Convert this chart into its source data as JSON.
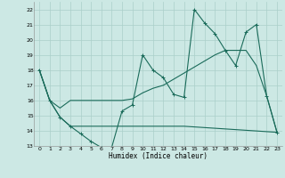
{
  "xlabel": "Humidex (Indice chaleur)",
  "xlim": [
    -0.5,
    23.5
  ],
  "ylim": [
    13,
    22.5
  ],
  "xticks": [
    0,
    1,
    2,
    3,
    4,
    5,
    6,
    7,
    8,
    9,
    10,
    11,
    12,
    13,
    14,
    15,
    16,
    17,
    18,
    19,
    20,
    21,
    22,
    23
  ],
  "yticks": [
    13,
    14,
    15,
    16,
    17,
    18,
    19,
    20,
    21,
    22
  ],
  "bg_color": "#cce8e4",
  "grid_color": "#aacfc9",
  "line_color": "#1a6b5a",
  "line1_x": [
    0,
    1,
    2,
    3,
    4,
    5,
    6,
    7,
    8,
    9,
    10,
    11,
    12,
    13,
    14,
    15,
    16,
    17,
    18,
    19,
    20,
    21,
    22,
    23
  ],
  "line1_y": [
    18,
    16,
    14.9,
    14.3,
    13.8,
    13.3,
    12.9,
    12.9,
    15.3,
    15.7,
    19.0,
    18.0,
    17.5,
    16.4,
    16.2,
    22.0,
    21.1,
    20.4,
    19.3,
    18.3,
    20.5,
    21.0,
    16.3,
    13.9
  ],
  "line2_x": [
    0,
    1,
    2,
    3,
    14,
    23
  ],
  "line2_y": [
    18,
    16,
    14.9,
    14.3,
    14.3,
    13.9
  ],
  "line3_x": [
    0,
    1,
    2,
    3,
    4,
    5,
    6,
    7,
    8,
    9,
    10,
    11,
    12,
    13,
    14,
    15,
    16,
    17,
    18,
    19,
    20,
    21,
    22,
    23
  ],
  "line3_y": [
    18,
    16,
    15.5,
    16.0,
    16.0,
    16.0,
    16.0,
    16.0,
    16.0,
    16.1,
    16.5,
    16.8,
    17.0,
    17.4,
    17.8,
    18.2,
    18.6,
    19.0,
    19.3,
    19.3,
    19.3,
    18.3,
    16.3,
    13.9
  ]
}
